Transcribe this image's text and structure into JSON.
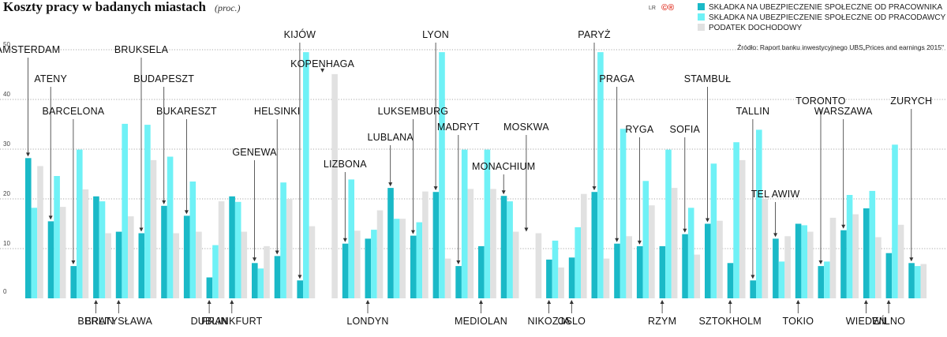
{
  "colors": {
    "employee": "#1ab9c7",
    "employer": "#6ff1f6",
    "tax": "#e1e1e1",
    "grid": "#555555",
    "arrow": "#333333",
    "logo": "#e23c2f"
  },
  "header": {
    "title": "Koszty pracy w badanych miastach",
    "subtitle": "(proc.)",
    "logo_small": "LR",
    "logo_mark": "©®"
  },
  "source": "Źródło: Raport banku inwestycyjnego UBS„Prices and earnings 2015\"",
  "chart_data": {
    "type": "bar",
    "title": "Koszty pracy w badanych miastach",
    "subtitle": "(proc.)",
    "ylim": [
      0,
      50
    ],
    "yticks": [
      "0",
      "10",
      "20",
      "30",
      "40",
      "50"
    ],
    "grid": true,
    "legend_position": "top-right",
    "series_names": [
      "SKŁADKA NA UBEZPIECZENIE SPOŁECZNE OD PRACOWNIKA",
      "SKŁADKA NA UBEZPIECZENIE SPOŁECZNE OD PRACODAWCY",
      "PODATEK DOCHODOWY"
    ],
    "categories": [
      "AMSTERDAM",
      "ATENY",
      "BARCELONA",
      "BERLIN",
      "BRATYSŁAWA",
      "BRUKSELA",
      "BUDAPESZT",
      "BUKARESZT",
      "DUBLIN",
      "FRANKFURT",
      "GENEWA",
      "HELSINKI",
      "KIJÓW",
      "KOPENHAGA",
      "LIZBONA",
      "LONDYN",
      "LUBLANA",
      "LUKSEMBURG",
      "LYON",
      "MADRYT",
      "MEDIOLAN",
      "MONACHIUM",
      "MOSKWA",
      "NIKOZJA",
      "OSLO",
      "PARYŻ",
      "PRAGA",
      "RYGA",
      "RZYM",
      "SOFIA",
      "STAMBUŁ",
      "SZTOKHOLM",
      "TALLIN",
      "TEL AWIW",
      "TOKIO",
      "TORONTO",
      "WARSZAWA",
      "WIEDEŃ",
      "WILNO",
      "ZURYCH"
    ],
    "label_positions": [
      "top",
      "top",
      "top",
      "bottom",
      "bottom",
      "top",
      "top",
      "top",
      "bottom",
      "bottom",
      "top",
      "top",
      "top",
      "top",
      "top",
      "bottom",
      "top",
      "top",
      "top",
      "top",
      "bottom",
      "top",
      "top",
      "bottom",
      "bottom",
      "top",
      "top",
      "top",
      "bottom",
      "top",
      "top",
      "bottom",
      "top",
      "top",
      "bottom",
      "top",
      "top",
      "bottom",
      "bottom",
      "top"
    ],
    "series": [
      {
        "name": "SKŁADKA NA UBEZPIECZENIE SPOŁECZNE OD PRACOWNIKA",
        "values": [
          28.2,
          15.5,
          6.5,
          20.5,
          13.4,
          13.1,
          18.6,
          16.6,
          4.2,
          20.5,
          7.1,
          8.5,
          3.6,
          0,
          11.0,
          12.0,
          22.2,
          12.6,
          21.4,
          6.5,
          10.5,
          20.6,
          0,
          7.8,
          8.2,
          21.4,
          11.0,
          10.5,
          10.5,
          12.9,
          15.0,
          7.1,
          3.6,
          12.0,
          15.0,
          6.5,
          13.7,
          18.1,
          9.1,
          7.1
        ]
      },
      {
        "name": "SKŁADKA NA UBEZPIECZENIE SPOŁECZNE OD PRACODAWCY",
        "values": [
          18.2,
          24.6,
          29.9,
          19.5,
          35.1,
          34.9,
          28.5,
          23.5,
          10.7,
          19.4,
          6.0,
          23.3,
          49.5,
          0,
          23.9,
          13.8,
          16.0,
          15.3,
          49.5,
          29.9,
          29.9,
          19.5,
          0,
          11.6,
          14.3,
          49.5,
          34.1,
          23.6,
          29.9,
          18.2,
          27.1,
          31.4,
          33.9,
          7.4,
          14.7,
          7.4,
          20.8,
          21.6,
          30.9,
          6.5
        ]
      },
      {
        "name": "PODATEK DOCHODOWY",
        "values": [
          26.6,
          18.4,
          21.9,
          13.1,
          16.5,
          27.8,
          13.1,
          13.4,
          19.5,
          13.4,
          10.5,
          20.0,
          14.5,
          45.1,
          13.6,
          17.7,
          16.0,
          21.5,
          8.0,
          22.0,
          22.0,
          13.4,
          13.1,
          6.2,
          21.0,
          8.0,
          12.5,
          18.7,
          22.2,
          8.8,
          15.6,
          27.8,
          20.0,
          12.5,
          13.4,
          16.2,
          16.9,
          12.3,
          14.8,
          6.9
        ]
      }
    ]
  }
}
